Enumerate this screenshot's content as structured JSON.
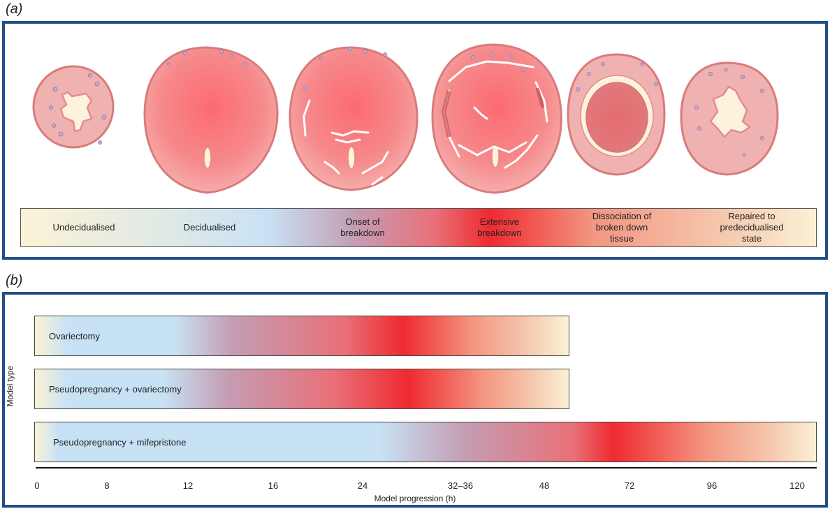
{
  "panel_a": {
    "label": "(a)",
    "stages": [
      "Undecidualised",
      "Decidualised",
      "Onset of\nbreakdown",
      "Extensive\nbreakdown",
      "Dissociation of\nbroken down\ntissue",
      "Repaired to\npredecidualised\nstate"
    ]
  },
  "panel_b": {
    "label": "(b)",
    "ylabel": "Model type",
    "xlabel": "Model progression (h)",
    "ticks": [
      "0",
      "8",
      "12",
      "16",
      "24",
      "32–36",
      "48",
      "72",
      "96",
      "120"
    ],
    "models": [
      "Ovariectomy",
      "Pseudopregnancy + ovariectomy",
      "Pseudopregnancy + mifepristone"
    ]
  },
  "colors": {
    "frame": "#1f4f87",
    "breakdown_red": "#ef2a30",
    "decidualised_blue": "#c8e2f5",
    "undecidualised_cream": "#fbf3d5"
  }
}
